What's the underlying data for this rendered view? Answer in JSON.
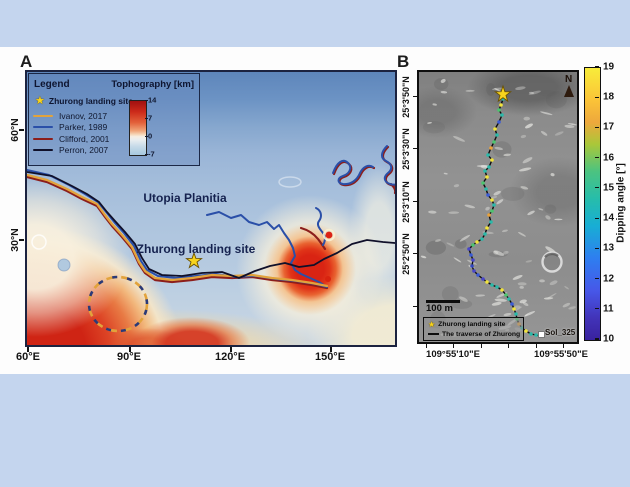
{
  "colors": {
    "frame_bar": "#c4d5ee",
    "star": "#f8d41d",
    "ivanov": "#e2a33c",
    "parker": "#2a4fa8",
    "clifford": "#8c1e1b",
    "perron": "#10102a",
    "traverse": "#0d0d0d"
  },
  "panel_a": {
    "label": "A",
    "legend_title": "Legend",
    "colorbar_title": "Tophography [km]",
    "star_item": "Zhurong landing site",
    "line_items": [
      "Ivanov, 2017",
      "Parker, 1989",
      "Clifford, 2001",
      "Perron, 2007"
    ],
    "line_colors": [
      "#e2a33c",
      "#2a4fa8",
      "#8c1e1b",
      "#10102a"
    ],
    "colorbar_ticks": [
      "14",
      "7",
      "0",
      "-7"
    ],
    "map_labels": {
      "region": "Utopia Planitia",
      "site": "Zhurong landing site"
    },
    "x_ticks": [
      "60°E",
      "90°E",
      "120°E",
      "150°E"
    ],
    "y_ticks": [
      "60°N",
      "30°N"
    ]
  },
  "panel_b": {
    "label": "B",
    "north": "N",
    "scale_bar": "100 m",
    "legend_star_item": "Zhurong landing site",
    "legend_line_item": "The traverse of Zhurong",
    "endpoint": "Sol_325",
    "x_ticks": [
      "109°55'10\"E",
      "109°55'50\"E"
    ],
    "y_ticks": [
      "25°3'50\"N",
      "25°3'30\"N",
      "25°3'10\"N",
      "25°2'50\"N"
    ],
    "colorbar_label": "Dipping angle [°]",
    "colorbar_ticks": [
      "19",
      "18",
      "17",
      "16",
      "15",
      "14",
      "13",
      "12",
      "11",
      "10"
    ]
  }
}
